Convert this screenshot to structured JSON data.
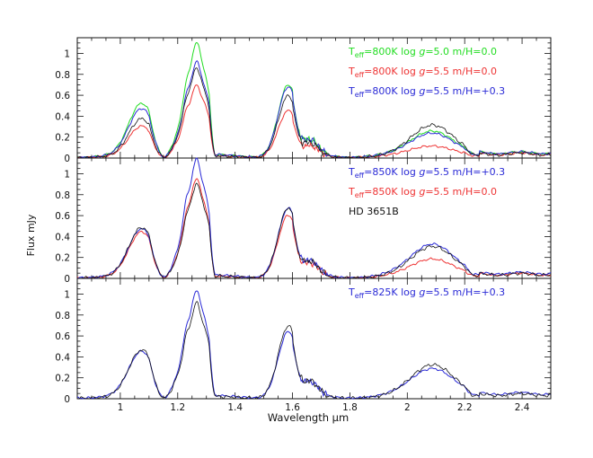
{
  "chart_data": {
    "type": "line",
    "xlabel": "Wavelength μm",
    "ylabel": "Flux mJy",
    "xlim": [
      0.85,
      2.5
    ],
    "x_ticks": [
      "1",
      "1.2",
      "1.4",
      "1.6",
      "1.8",
      "2",
      "2.2",
      "2.4"
    ],
    "y_ticks": [
      "0",
      "0.2",
      "0.4",
      "0.6",
      "0.8",
      "1"
    ],
    "ylim": [
      0,
      1.15
    ],
    "colors": {
      "green": "#22dd22",
      "red": "#ee3333",
      "blue": "#2a2ad6",
      "black": "#111111"
    },
    "panels": [
      {
        "legend": [
          {
            "t": "T",
            "sub": "eff",
            "rest": "=800K log ",
            "g": "g",
            "tail": "=5.0 m/H=0.0",
            "color": "green"
          },
          {
            "t": "T",
            "sub": "eff",
            "rest": "=800K log ",
            "g": "g",
            "tail": "=5.5 m/H=0.0",
            "color": "red"
          },
          {
            "t": "T",
            "sub": "eff",
            "rest": "=800K log ",
            "g": "g",
            "tail": "=5.5 m/H=+0.3",
            "color": "blue"
          }
        ],
        "series": [
          {
            "color": "green",
            "peaks": [
              0.5,
              1.05,
              0.68,
              0.25
            ],
            "floor": 0.03
          },
          {
            "color": "red",
            "peaks": [
              0.29,
              0.66,
              0.44,
              0.11
            ],
            "floor": 0.02
          },
          {
            "color": "blue",
            "peaks": [
              0.45,
              0.87,
              0.66,
              0.23
            ],
            "floor": 0.03
          },
          {
            "color": "black",
            "peaks": [
              0.36,
              0.82,
              0.58,
              0.31
            ],
            "floor": 0.02,
            "obs": true
          }
        ]
      },
      {
        "legend": [
          {
            "t": "T",
            "sub": "eff",
            "rest": "=850K log ",
            "g": "g",
            "tail": "=5.5 m/H=+0.3",
            "color": "blue"
          },
          {
            "t": "T",
            "sub": "eff",
            "rest": "=850K log ",
            "g": "g",
            "tail": "=5.5 m/H=0.0",
            "color": "red"
          },
          {
            "t": "",
            "sub": "",
            "rest": "HD 3651B",
            "g": "",
            "tail": "",
            "color": "black"
          }
        ],
        "series": [
          {
            "color": "red",
            "peaks": [
              0.43,
              0.91,
              0.59,
              0.18
            ],
            "floor": 0.02
          },
          {
            "color": "blue",
            "peaks": [
              0.45,
              1.08,
              0.65,
              0.32
            ],
            "floor": 0.03
          },
          {
            "color": "black",
            "peaks": [
              0.47,
              0.86,
              0.66,
              0.3
            ],
            "floor": 0.02,
            "obs": true
          }
        ]
      },
      {
        "legend": [
          {
            "t": "T",
            "sub": "eff",
            "rest": "=825K log ",
            "g": "g",
            "tail": "=5.5 m/H=+0.3",
            "color": "blue"
          }
        ],
        "series": [
          {
            "color": "blue",
            "peaks": [
              0.43,
              0.98,
              0.62,
              0.28
            ],
            "floor": 0.03
          },
          {
            "color": "black",
            "peaks": [
              0.45,
              0.87,
              0.68,
              0.32
            ],
            "floor": 0.02,
            "obs": true
          }
        ]
      }
    ]
  }
}
